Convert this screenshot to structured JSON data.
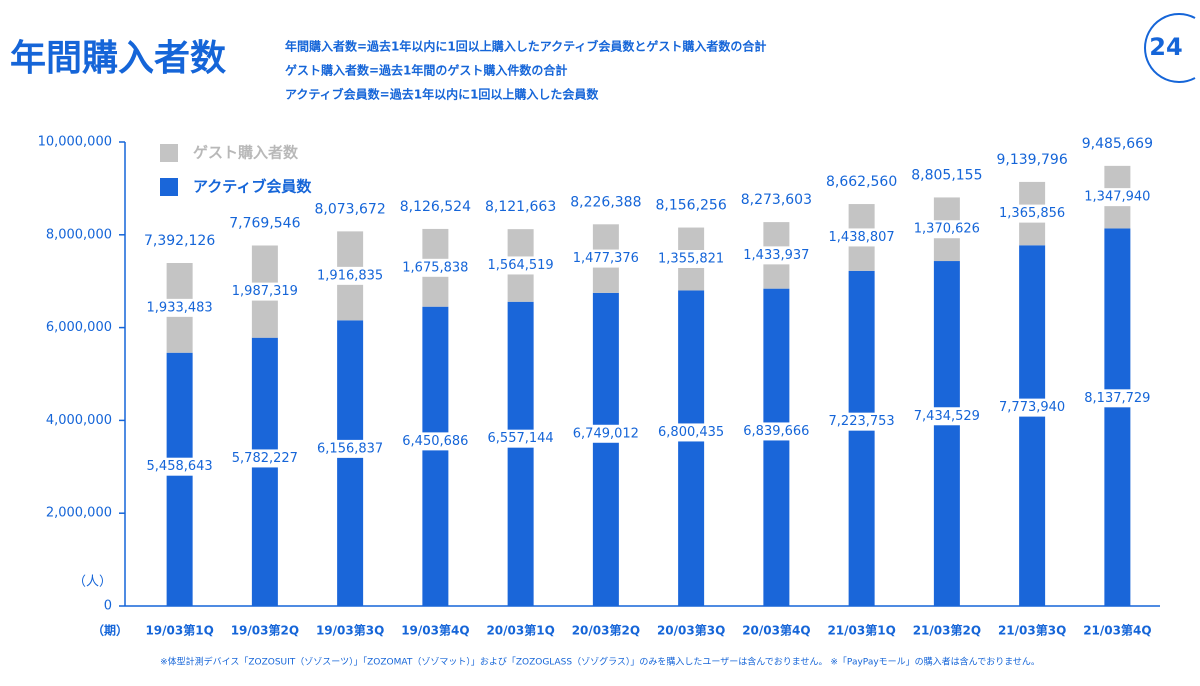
{
  "chart_data": {
    "type": "stacked_bar",
    "title": "年間購入者数",
    "definitions": [
      "年間購入者数=過去1年以内に1回以上購入したアクティブ会員数とゲスト購入者数の合計",
      "ゲスト購入者数=過去1年間のゲスト購入件数の合計",
      "アクティブ会員数=過去1年以内に1回以上購入した会員数"
    ],
    "page_number": "24",
    "unit_label": "（人）",
    "period_label": "（期）",
    "footnote": "※体型計測デバイス「ZOZOSUIT（ゾゾスーツ）」「ZOZOMAT（ゾゾマット）」および「ZOZOGLASS（ゾゾグラス）」のみを購入したユーザーは含んでおりません。 ※「PayPayモール」の購入者は含んでおりません。",
    "categories": [
      "19/03第1Q",
      "19/03第2Q",
      "19/03第3Q",
      "19/03第4Q",
      "20/03第1Q",
      "20/03第2Q",
      "20/03第3Q",
      "20/03第4Q",
      "21/03第1Q",
      "21/03第2Q",
      "21/03第3Q",
      "21/03第4Q"
    ],
    "series": [
      {
        "name": "アクティブ会員数",
        "color": "#1a66d9",
        "values": [
          5458643,
          5782227,
          6156837,
          6450686,
          6557144,
          6749012,
          6800435,
          6839666,
          7223753,
          7434529,
          7773940,
          8137729
        ],
        "value_labels": [
          "5,458,643",
          "5,782,227",
          "6,156,837",
          "6,450,686",
          "6,557,144",
          "6,749,012",
          "6,800,435",
          "6,839,666",
          "7,223,753",
          "7,434,529",
          "7,773,940",
          "8,137,729"
        ]
      },
      {
        "name": "ゲスト購入者数",
        "color": "#c4c4c4",
        "values": [
          1933483,
          1987319,
          1916835,
          1675838,
          1564519,
          1477376,
          1355821,
          1433937,
          1438807,
          1370626,
          1365856,
          1347940
        ],
        "value_labels": [
          "1,933,483",
          "1,987,319",
          "1,916,835",
          "1,675,838",
          "1,564,519",
          "1,477,376",
          "1,355,821",
          "1,433,937",
          "1,438,807",
          "1,370,626",
          "1,365,856",
          "1,347,940"
        ]
      }
    ],
    "totals": {
      "values": [
        7392126,
        7769546,
        8073672,
        8126524,
        8121663,
        8226388,
        8156256,
        8273603,
        8662560,
        8805155,
        9139796,
        9485669
      ],
      "value_labels": [
        "7,392,126",
        "7,769,546",
        "8,073,672",
        "8,126,524",
        "8,121,663",
        "8,226,388",
        "8,156,256",
        "8,273,603",
        "8,662,560",
        "8,805,155",
        "9,139,796",
        "9,485,669"
      ]
    },
    "ylim": [
      0,
      10000000
    ],
    "yticks": [
      0,
      {
        "value": 2000000,
        "label": "2,000,000"
      },
      {
        "value": 4000000,
        "label": "4,000,000"
      },
      {
        "value": 6000000,
        "label": "6,000,000"
      },
      {
        "value": 8000000,
        "label": "8,000,000"
      },
      {
        "value": 10000000,
        "label": "10,000,000"
      }
    ]
  }
}
